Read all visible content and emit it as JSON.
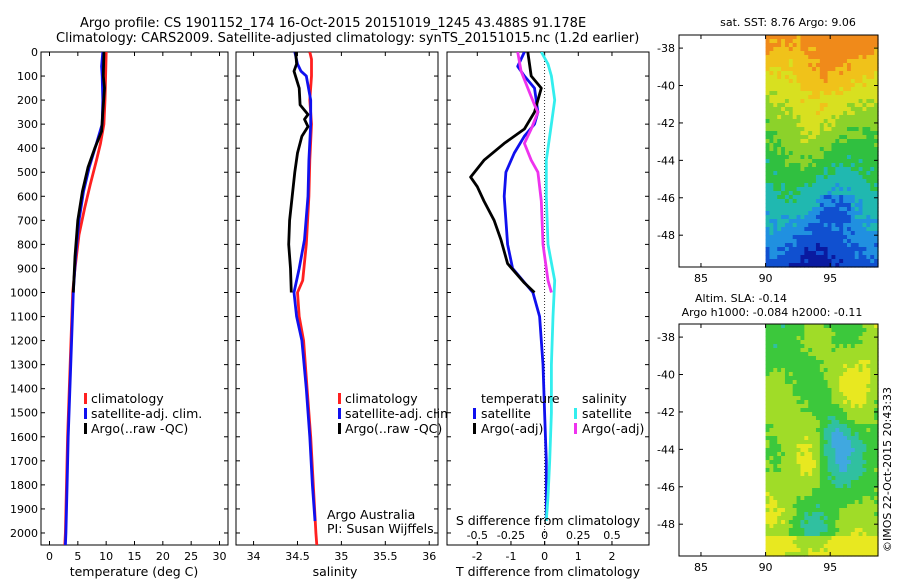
{
  "header": {
    "line1": "Argo profile: CS 1901152_174 16-Oct-2015 20151019_1245 43.488S 91.178E",
    "line2": "Climatology: CARS2009. Satellite-adjusted climatology: synTS_20151015.nc (1.2d earlier)"
  },
  "colors": {
    "climatology": "#ff2020",
    "satellite": "#1010ee",
    "argo": "#000000",
    "sat_diff": "#33eeee",
    "argo_diff": "#ee33ee"
  },
  "chart_data": [
    {
      "type": "line",
      "name": "temperature-profile",
      "xlabel": "temperature (deg C)",
      "xlim": [
        -1.5,
        31.5
      ],
      "xticks": [
        0,
        5,
        10,
        15,
        20,
        25,
        30
      ],
      "ylim": [
        2050,
        0
      ],
      "yticks": [
        0,
        100,
        200,
        300,
        400,
        500,
        600,
        700,
        800,
        900,
        1000,
        1100,
        1200,
        1300,
        1400,
        1500,
        1600,
        1700,
        1800,
        1900,
        2000
      ],
      "legend": {
        "position": "bottom-center",
        "entries": [
          "climatology",
          "satellite-adj. clim.",
          "Argo(..raw -QC)"
        ]
      },
      "series": [
        {
          "name": "climatology",
          "color": "#ff2020",
          "points": [
            [
              10,
              0
            ],
            [
              9.9,
              100
            ],
            [
              9.8,
              200
            ],
            [
              9.6,
              300
            ],
            [
              9,
              380
            ],
            [
              8.3,
              450
            ],
            [
              7.2,
              550
            ],
            [
              6.2,
              650
            ],
            [
              5.2,
              760
            ],
            [
              4.5,
              900
            ],
            [
              4.1,
              1000
            ],
            [
              3.8,
              1200
            ],
            [
              3.5,
              1400
            ],
            [
              3.2,
              1600
            ],
            [
              3,
              1800
            ],
            [
              2.8,
              2000
            ],
            [
              2.7,
              2050
            ]
          ]
        },
        {
          "name": "satellite-adj. clim.",
          "color": "#1010ee",
          "points": [
            [
              9.4,
              0
            ],
            [
              9.2,
              60
            ],
            [
              9.3,
              100
            ],
            [
              9.4,
              200
            ],
            [
              9.3,
              300
            ],
            [
              8.3,
              380
            ],
            [
              7,
              480
            ],
            [
              6,
              580
            ],
            [
              5.2,
              700
            ],
            [
              4.6,
              850
            ],
            [
              4.2,
              1000
            ],
            [
              3.9,
              1200
            ],
            [
              3.6,
              1400
            ],
            [
              3.3,
              1600
            ],
            [
              3.1,
              1800
            ],
            [
              2.9,
              2000
            ],
            [
              2.8,
              2050
            ]
          ]
        },
        {
          "name": "Argo(..raw -QC)",
          "color": "#000000",
          "points": [
            [
              9.6,
              0
            ],
            [
              9.5,
              100
            ],
            [
              9.7,
              150
            ],
            [
              9.4,
              250
            ],
            [
              9.2,
              330
            ],
            [
              8,
              400
            ],
            [
              6.8,
              480
            ],
            [
              5.8,
              580
            ],
            [
              5,
              700
            ],
            [
              4.5,
              850
            ],
            [
              4.2,
              1000
            ]
          ]
        }
      ],
      "annotations": []
    },
    {
      "type": "line",
      "name": "salinity-profile",
      "xlabel": "salinity",
      "xlim": [
        33.8,
        36.1
      ],
      "xticks": [
        34,
        34.5,
        35,
        35.5,
        36
      ],
      "xticklabels": [
        "34",
        "34.5",
        "35",
        "35.5",
        "36"
      ],
      "ylim": [
        2050,
        0
      ],
      "legend": {
        "position": "bottom-center",
        "entries": [
          "climatology",
          "satellite-adj. clim.",
          "Argo(..raw -QC)"
        ]
      },
      "series": [
        {
          "name": "climatology",
          "color": "#ff2020",
          "points": [
            [
              34.64,
              0
            ],
            [
              34.66,
              30
            ],
            [
              34.66,
              100
            ],
            [
              34.64,
              200
            ],
            [
              34.66,
              300
            ],
            [
              34.64,
              450
            ],
            [
              34.63,
              600
            ],
            [
              34.6,
              800
            ],
            [
              34.56,
              950
            ],
            [
              34.5,
              1000
            ],
            [
              34.52,
              1100
            ],
            [
              34.57,
              1200
            ],
            [
              34.61,
              1400
            ],
            [
              34.65,
              1600
            ],
            [
              34.68,
              1800
            ],
            [
              34.71,
              2000
            ],
            [
              34.72,
              2050
            ]
          ]
        },
        {
          "name": "satellite-adj. clim.",
          "color": "#1010ee",
          "points": [
            [
              34.47,
              0
            ],
            [
              34.5,
              50
            ],
            [
              34.54,
              80
            ],
            [
              34.6,
              100
            ],
            [
              34.65,
              200
            ],
            [
              34.65,
              300
            ],
            [
              34.63,
              450
            ],
            [
              34.62,
              600
            ],
            [
              34.58,
              780
            ],
            [
              34.52,
              900
            ],
            [
              34.46,
              1000
            ],
            [
              34.49,
              1100
            ],
            [
              34.55,
              1200
            ],
            [
              34.6,
              1400
            ],
            [
              34.64,
              1600
            ],
            [
              34.67,
              1800
            ],
            [
              34.7,
              1950
            ]
          ]
        },
        {
          "name": "Argo(..raw -QC)",
          "color": "#000000",
          "points": [
            [
              34.48,
              0
            ],
            [
              34.49,
              50
            ],
            [
              34.46,
              80
            ],
            [
              34.52,
              150
            ],
            [
              34.53,
              220
            ],
            [
              34.62,
              260
            ],
            [
              34.58,
              280
            ],
            [
              34.62,
              310
            ],
            [
              34.55,
              350
            ],
            [
              34.5,
              420
            ],
            [
              34.47,
              500
            ],
            [
              34.44,
              600
            ],
            [
              34.41,
              700
            ],
            [
              34.4,
              800
            ],
            [
              34.42,
              900
            ],
            [
              34.43,
              1000
            ]
          ]
        }
      ],
      "annotations": [
        "Argo Australia",
        "PI: Susan Wijffels"
      ]
    },
    {
      "type": "line",
      "name": "difference-profile",
      "xlabel": "T difference from climatology",
      "xlabel2": "S difference from climatology",
      "xlim": [
        -2.9,
        3.1
      ],
      "xticks": [
        -2,
        -1,
        0,
        1,
        2
      ],
      "sticks": {
        "values": [
          -0.5,
          -0.25,
          0,
          0.25,
          0.5
        ],
        "labels": [
          "-0.5",
          "-0.25",
          "0",
          "0.25",
          "0.5"
        ],
        "scale": 4
      },
      "ylim": [
        2050,
        0
      ],
      "legend": {
        "position": "bottom-center",
        "groups": [
          {
            "title": "temperature",
            "entries": [
              "satellite",
              "Argo(-adj)"
            ]
          },
          {
            "title": "salinity",
            "entries": [
              "satellite",
              "Argo(-adj)"
            ]
          }
        ]
      },
      "series": [
        {
          "name": "temperature satellite",
          "color": "#1010ee",
          "points": [
            [
              -0.6,
              0
            ],
            [
              -0.8,
              60
            ],
            [
              -0.6,
              100
            ],
            [
              -0.3,
              150
            ],
            [
              -0.2,
              250
            ],
            [
              -0.3,
              300
            ],
            [
              -0.6,
              350
            ],
            [
              -0.9,
              420
            ],
            [
              -1.15,
              500
            ],
            [
              -1.2,
              600
            ],
            [
              -1.15,
              700
            ],
            [
              -1.1,
              800
            ],
            [
              -0.95,
              900
            ],
            [
              -0.35,
              1000
            ],
            [
              -0.15,
              1100
            ],
            [
              -0.05,
              1300
            ],
            [
              0,
              1500
            ],
            [
              0.05,
              1700
            ],
            [
              0.05,
              1900
            ],
            [
              0.05,
              1950
            ]
          ]
        },
        {
          "name": "temperature Argo(-adj)",
          "color": "#000000",
          "points": [
            [
              -0.5,
              0
            ],
            [
              -0.4,
              100
            ],
            [
              -0.1,
              150
            ],
            [
              -0.3,
              250
            ],
            [
              -0.6,
              320
            ],
            [
              -1.2,
              380
            ],
            [
              -1.8,
              450
            ],
            [
              -2.2,
              520
            ],
            [
              -2,
              560
            ],
            [
              -1.8,
              620
            ],
            [
              -1.5,
              700
            ],
            [
              -1.3,
              780
            ],
            [
              -1.1,
              880
            ],
            [
              -0.6,
              960
            ],
            [
              -0.3,
              1000
            ]
          ]
        },
        {
          "name": "salinity satellite",
          "color": "#33eeee",
          "points": [
            [
              -0.1,
              0
            ],
            [
              0.1,
              50
            ],
            [
              0.2,
              100
            ],
            [
              0.3,
              200
            ],
            [
              0.2,
              300
            ],
            [
              0.05,
              450
            ],
            [
              0.05,
              600
            ],
            [
              0.1,
              800
            ],
            [
              0.3,
              950
            ],
            [
              0.25,
              1100
            ],
            [
              0.2,
              1300
            ],
            [
              0.2,
              1500
            ],
            [
              0.15,
              1700
            ],
            [
              0.1,
              1850
            ],
            [
              0.05,
              1950
            ]
          ]
        },
        {
          "name": "salinity Argo(-adj)",
          "color": "#ee33ee",
          "points": [
            [
              -0.8,
              0
            ],
            [
              -0.7,
              80
            ],
            [
              -0.5,
              150
            ],
            [
              -0.3,
              220
            ],
            [
              -0.2,
              250
            ],
            [
              -0.4,
              320
            ],
            [
              -0.6,
              380
            ],
            [
              -0.4,
              450
            ],
            [
              -0.2,
              500
            ],
            [
              -0.1,
              620
            ],
            [
              -0.05,
              800
            ],
            [
              0.1,
              950
            ],
            [
              0.2,
              1000
            ]
          ]
        }
      ],
      "annotations": []
    },
    {
      "type": "heatmap",
      "name": "sst-map",
      "title": "sat. SST: 8.76 Argo: 9.06",
      "xticks": [
        85,
        90,
        95
      ],
      "yticks": [
        -38,
        -40,
        -42,
        -44,
        -46,
        -48
      ],
      "xlim": [
        83.3,
        98.7
      ],
      "ylim": [
        -49.7,
        -37.3
      ],
      "data_extent_lon": [
        90,
        98.7
      ],
      "colors": [
        "#f08a1a",
        "#f0c21a",
        "#d8e020",
        "#8cd22a",
        "#30c040",
        "#20b8b0",
        "#2090e0",
        "#1050d0",
        "#0a1aa0"
      ]
    },
    {
      "type": "heatmap",
      "name": "sla-map",
      "title": "Altim. SLA: -0.14",
      "subtitle": "Argo h1000: -0.084 h2000: -0.11",
      "xticks": [
        85,
        90,
        95
      ],
      "yticks": [
        -38,
        -40,
        -42,
        -44,
        -46,
        -48
      ],
      "xlim": [
        83.3,
        98.7
      ],
      "ylim": [
        -49.7,
        -37.3
      ],
      "data_extent_lon": [
        90,
        98.7
      ],
      "colors": [
        "#e8e820",
        "#a0dc28",
        "#3cc83c",
        "#30c0a0",
        "#40a8e0",
        "#2e80e0"
      ]
    }
  ],
  "footer": {
    "credit": "©IMOS 22-Oct-2015 20:43:33"
  }
}
